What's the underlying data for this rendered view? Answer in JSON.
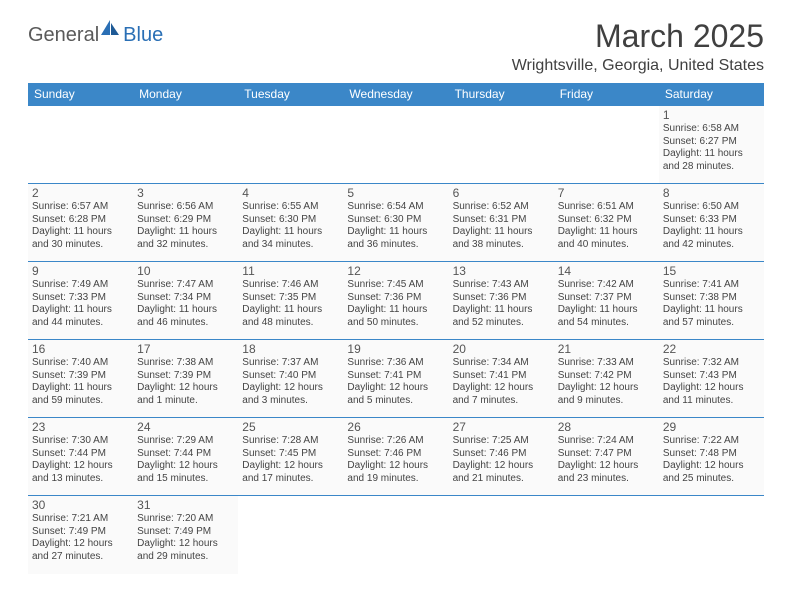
{
  "logo": {
    "text1": "General",
    "text2": "Blue"
  },
  "title": "March 2025",
  "location": "Wrightsville, Georgia, United States",
  "colors": {
    "header_bg": "#3b87c8",
    "header_text": "#ffffff",
    "cell_border": "#3b87c8",
    "cell_bg": "#fafafa",
    "logo_gray": "#5a5a5a",
    "logo_blue": "#2a6fb5"
  },
  "weekdays": [
    "Sunday",
    "Monday",
    "Tuesday",
    "Wednesday",
    "Thursday",
    "Friday",
    "Saturday"
  ],
  "weeks": [
    [
      null,
      null,
      null,
      null,
      null,
      null,
      {
        "n": "1",
        "sr": "Sunrise: 6:58 AM",
        "ss": "Sunset: 6:27 PM",
        "d1": "Daylight: 11 hours",
        "d2": "and 28 minutes."
      }
    ],
    [
      {
        "n": "2",
        "sr": "Sunrise: 6:57 AM",
        "ss": "Sunset: 6:28 PM",
        "d1": "Daylight: 11 hours",
        "d2": "and 30 minutes."
      },
      {
        "n": "3",
        "sr": "Sunrise: 6:56 AM",
        "ss": "Sunset: 6:29 PM",
        "d1": "Daylight: 11 hours",
        "d2": "and 32 minutes."
      },
      {
        "n": "4",
        "sr": "Sunrise: 6:55 AM",
        "ss": "Sunset: 6:30 PM",
        "d1": "Daylight: 11 hours",
        "d2": "and 34 minutes."
      },
      {
        "n": "5",
        "sr": "Sunrise: 6:54 AM",
        "ss": "Sunset: 6:30 PM",
        "d1": "Daylight: 11 hours",
        "d2": "and 36 minutes."
      },
      {
        "n": "6",
        "sr": "Sunrise: 6:52 AM",
        "ss": "Sunset: 6:31 PM",
        "d1": "Daylight: 11 hours",
        "d2": "and 38 minutes."
      },
      {
        "n": "7",
        "sr": "Sunrise: 6:51 AM",
        "ss": "Sunset: 6:32 PM",
        "d1": "Daylight: 11 hours",
        "d2": "and 40 minutes."
      },
      {
        "n": "8",
        "sr": "Sunrise: 6:50 AM",
        "ss": "Sunset: 6:33 PM",
        "d1": "Daylight: 11 hours",
        "d2": "and 42 minutes."
      }
    ],
    [
      {
        "n": "9",
        "sr": "Sunrise: 7:49 AM",
        "ss": "Sunset: 7:33 PM",
        "d1": "Daylight: 11 hours",
        "d2": "and 44 minutes."
      },
      {
        "n": "10",
        "sr": "Sunrise: 7:47 AM",
        "ss": "Sunset: 7:34 PM",
        "d1": "Daylight: 11 hours",
        "d2": "and 46 minutes."
      },
      {
        "n": "11",
        "sr": "Sunrise: 7:46 AM",
        "ss": "Sunset: 7:35 PM",
        "d1": "Daylight: 11 hours",
        "d2": "and 48 minutes."
      },
      {
        "n": "12",
        "sr": "Sunrise: 7:45 AM",
        "ss": "Sunset: 7:36 PM",
        "d1": "Daylight: 11 hours",
        "d2": "and 50 minutes."
      },
      {
        "n": "13",
        "sr": "Sunrise: 7:43 AM",
        "ss": "Sunset: 7:36 PM",
        "d1": "Daylight: 11 hours",
        "d2": "and 52 minutes."
      },
      {
        "n": "14",
        "sr": "Sunrise: 7:42 AM",
        "ss": "Sunset: 7:37 PM",
        "d1": "Daylight: 11 hours",
        "d2": "and 54 minutes."
      },
      {
        "n": "15",
        "sr": "Sunrise: 7:41 AM",
        "ss": "Sunset: 7:38 PM",
        "d1": "Daylight: 11 hours",
        "d2": "and 57 minutes."
      }
    ],
    [
      {
        "n": "16",
        "sr": "Sunrise: 7:40 AM",
        "ss": "Sunset: 7:39 PM",
        "d1": "Daylight: 11 hours",
        "d2": "and 59 minutes."
      },
      {
        "n": "17",
        "sr": "Sunrise: 7:38 AM",
        "ss": "Sunset: 7:39 PM",
        "d1": "Daylight: 12 hours",
        "d2": "and 1 minute."
      },
      {
        "n": "18",
        "sr": "Sunrise: 7:37 AM",
        "ss": "Sunset: 7:40 PM",
        "d1": "Daylight: 12 hours",
        "d2": "and 3 minutes."
      },
      {
        "n": "19",
        "sr": "Sunrise: 7:36 AM",
        "ss": "Sunset: 7:41 PM",
        "d1": "Daylight: 12 hours",
        "d2": "and 5 minutes."
      },
      {
        "n": "20",
        "sr": "Sunrise: 7:34 AM",
        "ss": "Sunset: 7:41 PM",
        "d1": "Daylight: 12 hours",
        "d2": "and 7 minutes."
      },
      {
        "n": "21",
        "sr": "Sunrise: 7:33 AM",
        "ss": "Sunset: 7:42 PM",
        "d1": "Daylight: 12 hours",
        "d2": "and 9 minutes."
      },
      {
        "n": "22",
        "sr": "Sunrise: 7:32 AM",
        "ss": "Sunset: 7:43 PM",
        "d1": "Daylight: 12 hours",
        "d2": "and 11 minutes."
      }
    ],
    [
      {
        "n": "23",
        "sr": "Sunrise: 7:30 AM",
        "ss": "Sunset: 7:44 PM",
        "d1": "Daylight: 12 hours",
        "d2": "and 13 minutes."
      },
      {
        "n": "24",
        "sr": "Sunrise: 7:29 AM",
        "ss": "Sunset: 7:44 PM",
        "d1": "Daylight: 12 hours",
        "d2": "and 15 minutes."
      },
      {
        "n": "25",
        "sr": "Sunrise: 7:28 AM",
        "ss": "Sunset: 7:45 PM",
        "d1": "Daylight: 12 hours",
        "d2": "and 17 minutes."
      },
      {
        "n": "26",
        "sr": "Sunrise: 7:26 AM",
        "ss": "Sunset: 7:46 PM",
        "d1": "Daylight: 12 hours",
        "d2": "and 19 minutes."
      },
      {
        "n": "27",
        "sr": "Sunrise: 7:25 AM",
        "ss": "Sunset: 7:46 PM",
        "d1": "Daylight: 12 hours",
        "d2": "and 21 minutes."
      },
      {
        "n": "28",
        "sr": "Sunrise: 7:24 AM",
        "ss": "Sunset: 7:47 PM",
        "d1": "Daylight: 12 hours",
        "d2": "and 23 minutes."
      },
      {
        "n": "29",
        "sr": "Sunrise: 7:22 AM",
        "ss": "Sunset: 7:48 PM",
        "d1": "Daylight: 12 hours",
        "d2": "and 25 minutes."
      }
    ],
    [
      {
        "n": "30",
        "sr": "Sunrise: 7:21 AM",
        "ss": "Sunset: 7:49 PM",
        "d1": "Daylight: 12 hours",
        "d2": "and 27 minutes."
      },
      {
        "n": "31",
        "sr": "Sunrise: 7:20 AM",
        "ss": "Sunset: 7:49 PM",
        "d1": "Daylight: 12 hours",
        "d2": "and 29 minutes."
      },
      null,
      null,
      null,
      null,
      null
    ]
  ]
}
